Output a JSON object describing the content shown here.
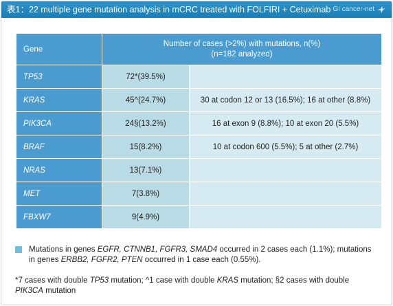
{
  "title": "表1：22 multiple gene mutation analysis in mCRC treated with FOLFIRI + Cetuximab",
  "logo_text": "GI cancer-net",
  "table": {
    "header_gene": "Gene",
    "header_number_line1": "Number of cases (>2%) with mutations, n(%)",
    "header_number_line2": "(n=182 analyzed)",
    "rows": [
      {
        "gene": "TP53",
        "count": "72*(39.5%)",
        "detail": ""
      },
      {
        "gene": "KRAS",
        "count": "45^(24.7%)",
        "detail": "30 at codon 12 or 13 (16.5%); 16 at other (8.8%)"
      },
      {
        "gene": "PIK3CA",
        "count": "24§(13.2%)",
        "detail": "16 at exon 9 (8.8%); 10 at exon 20 (5.5%)"
      },
      {
        "gene": "BRAF",
        "count": "15(8.2%)",
        "detail": "10 at codon 600 (5.5%); 5 at other (2.7%)"
      },
      {
        "gene": "NRAS",
        "count": "13(7.1%)",
        "detail": ""
      },
      {
        "gene": "MET",
        "count": "7(3.8%)",
        "detail": ""
      },
      {
        "gene": "FBXW7",
        "count": "9(4.9%)",
        "detail": ""
      }
    ]
  },
  "footnote1": {
    "a": "Mutations in genes ",
    "a_genes": "EGFR, CTNNB1, FGFR3, SMAD4",
    "b": " occurred in 2 cases each (1.1%); mutations in genes ",
    "b_genes": "ERBB2, FGFR2, PTEN",
    "c": " occurred in 1 case each (0.55%)."
  },
  "footnote2": {
    "a": "*7 cases with double ",
    "a_gene": "TP53",
    "b": " mutation; ^1 case with double ",
    "b_gene": "KRAS",
    "c": " mutation; §2 cases with double ",
    "c_gene": "PIK3CA",
    "d": " mutation"
  },
  "colors": {
    "title_bar": "#1f86bf",
    "header_cell": "#4a9cd0",
    "count_cell": "#b9dbe6",
    "detail_cell": "#d6ebf1",
    "legend_square": "#72bde0"
  }
}
